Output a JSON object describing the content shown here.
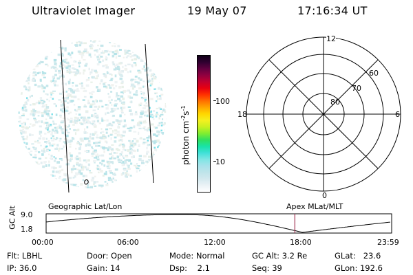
{
  "header": {
    "title": "Ultraviolet Imager",
    "date": "19 May 07",
    "time": "17:16:34 UT"
  },
  "colorbar": {
    "label_main": "photon cm",
    "label_sup1": "-2",
    "label_s": "s",
    "label_sup2": "-1",
    "ticks": [
      {
        "label": "100",
        "value": 100
      },
      {
        "label": "10",
        "value": 10
      }
    ],
    "colors": [
      "#ffffff",
      "#eaf2f6",
      "#d3e8ee",
      "#bfe4ea",
      "#a8e2ea",
      "#7fe6e4",
      "#40e0d8",
      "#18e3a8",
      "#30e060",
      "#80ee30",
      "#c8f020",
      "#f4f020",
      "#ffd800",
      "#ffa800",
      "#ff7000",
      "#ff3000",
      "#e80010",
      "#c00030",
      "#900040",
      "#600040",
      "#300030",
      "#100018"
    ]
  },
  "polar": {
    "mlt_labels": {
      "top": "12",
      "left": "18",
      "right": "6",
      "bottom": "0"
    },
    "lat_labels": [
      "80",
      "70",
      "60"
    ]
  },
  "timeline": {
    "left_title": "Geographic Lat/Lon",
    "right_title": "Apex MLat/MLT",
    "y_axis_label": "GC Alt",
    "y_ticks": [
      "9.0",
      "1.8"
    ],
    "y_range": [
      1.8,
      9.0
    ],
    "x_ticks": [
      "00:00",
      "06:00",
      "12:00",
      "18:00",
      "23:59"
    ],
    "current_marker_hours": 17.28,
    "marker_color": "#a03050"
  },
  "info": {
    "row1": [
      {
        "key": "Flt:",
        "value": "LBHL"
      },
      {
        "key": "Door:",
        "value": "Open"
      },
      {
        "key": "Mode:",
        "value": "Normal"
      },
      {
        "key": "GC Alt:",
        "value": "3.2 Re"
      },
      {
        "key": "GLat:",
        "value": "23.6"
      }
    ],
    "row2": [
      {
        "key": "IP:",
        "value": "36.0"
      },
      {
        "key": "Gain:",
        "value": "14"
      },
      {
        "key": "Dsp:",
        "value": "2.1"
      },
      {
        "key": "Seq:",
        "value": "39"
      },
      {
        "key": "GLon:",
        "value": "192.6"
      }
    ]
  }
}
